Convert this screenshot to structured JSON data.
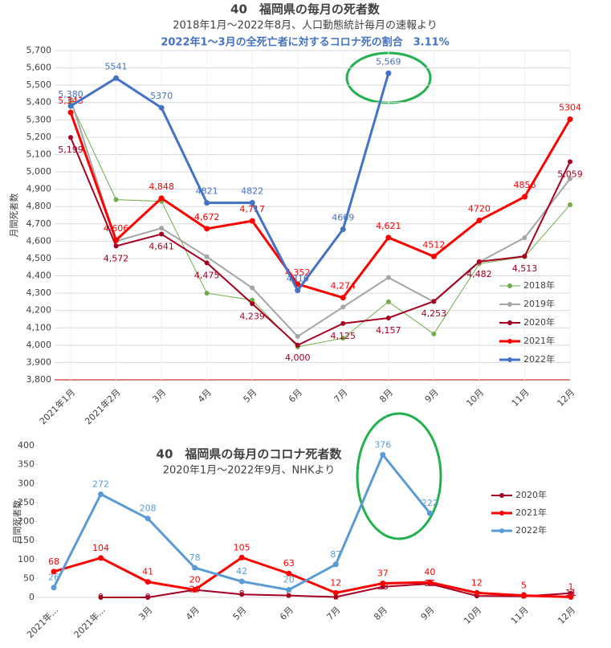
{
  "chart_data": [
    {
      "type": "line",
      "title": "40　福岡県の毎月の死者数",
      "subtitle": "2018年1月～2022年8月、人口動態統計毎月の速報より",
      "annotation": "2022年1～3月の全死亡者に対するコロナ死の割合　3.11%",
      "y_label": "月間死者数",
      "categories": [
        "2021年1月",
        "2021年2月",
        "3月",
        "4月",
        "5月",
        "6月",
        "7月",
        "8月",
        "9月",
        "10月",
        "11月",
        "12月"
      ],
      "ylim": [
        3800,
        5700
      ],
      "yticks": [
        {
          "value": 3800,
          "label": "3,800"
        },
        {
          "value": 3900,
          "label": "3,900"
        },
        {
          "value": 4000,
          "label": "4,000"
        },
        {
          "value": 4100,
          "label": "4,100"
        },
        {
          "value": 4200,
          "label": "4,200"
        },
        {
          "value": 4300,
          "label": "4,300"
        },
        {
          "value": 4400,
          "label": "4,400"
        },
        {
          "value": 4500,
          "label": "4,500"
        },
        {
          "value": 4600,
          "label": "4,600"
        },
        {
          "value": 4700,
          "label": "4,700"
        },
        {
          "value": 4800,
          "label": "4,800"
        },
        {
          "value": 4900,
          "label": "4,900"
        },
        {
          "value": 5000,
          "label": "5,000"
        },
        {
          "value": 5100,
          "label": "5,100"
        },
        {
          "value": 5200,
          "label": "5,200"
        },
        {
          "value": 5300,
          "label": "5,300"
        },
        {
          "value": 5400,
          "label": "5,400"
        },
        {
          "value": 5500,
          "label": "5,500"
        },
        {
          "value": 5600,
          "label": "5,600"
        },
        {
          "value": 5700,
          "label": "5,700"
        }
      ],
      "grid": true,
      "legend": "right",
      "series": [
        {
          "name": "2018年",
          "color": "#70ad47",
          "values": [
            5400,
            4840,
            4830,
            4300,
            4260,
            3990,
            4040,
            4250,
            4065,
            4470,
            4510,
            4810
          ]
        },
        {
          "name": "2019年",
          "color": "#a5a5a5",
          "values": [
            5420,
            4600,
            4675,
            4510,
            4330,
            4050,
            4220,
            4390,
            4250,
            4480,
            4620,
            4960
          ]
        },
        {
          "name": "2020年",
          "color": "#a50021",
          "values": [
            5199,
            4572,
            4641,
            4475,
            4239,
            4000,
            4125,
            4157,
            4253,
            4482,
            4513,
            5059
          ],
          "value_labels": [
            "5,199",
            "4,572",
            "4,641",
            "4,475",
            "4,239",
            "4,000",
            "4,125",
            "4,157",
            "4,253",
            "4,482",
            "4,513",
            "5,059"
          ]
        },
        {
          "name": "2021年",
          "color": "#ff0000",
          "values": [
            5343,
            4606,
            4848,
            4672,
            4717,
            4352,
            4274,
            4621,
            4512,
            4720,
            4856,
            5304
          ],
          "value_labels": [
            "5,343",
            "4,606",
            "4,848",
            "4,672",
            "4,717",
            "4,352",
            "4,274",
            "4,621",
            "4512",
            "4720",
            "4856",
            "5304"
          ]
        },
        {
          "name": "2022年",
          "color": "#4472c4",
          "values": [
            5380,
            5541,
            5370,
            4821,
            4822,
            4316,
            4669,
            5569,
            null,
            null,
            null,
            null
          ],
          "value_labels": [
            "5,380",
            "5541",
            "5370",
            "4821",
            "4822",
            "4316",
            "4669",
            "5,569",
            null,
            null,
            null,
            null
          ]
        }
      ]
    },
    {
      "type": "line",
      "title": "40　福岡県の毎月のコロナ死者数",
      "subtitle": "2020年1月～2022年9月、NHKより",
      "y_label": "月間死者数",
      "categories": [
        "2021年...",
        "2021年...",
        "3月",
        "4月",
        "5月",
        "6月",
        "7月",
        "8月",
        "9月",
        "10月",
        "11月",
        "12月"
      ],
      "ylim": [
        0,
        400
      ],
      "yticks": [
        0,
        50,
        100,
        150,
        200,
        250,
        300,
        350,
        400
      ],
      "grid": false,
      "legend": "right",
      "series": [
        {
          "name": "2020年",
          "color": "#a50021",
          "values": [
            null,
            0,
            0,
            20,
            8,
            5,
            1,
            28,
            36,
            4,
            3,
            11
          ],
          "value_labels": [
            null,
            "0",
            "0",
            "20",
            "8",
            "5",
            "1",
            "28",
            "36",
            "4",
            "3",
            "11"
          ]
        },
        {
          "name": "2021年",
          "color": "#ff0000",
          "values": [
            68,
            104,
            41,
            20,
            105,
            63,
            12,
            37,
            40,
            12,
            5,
            1
          ],
          "value_labels": [
            "68",
            "104",
            "41",
            "20",
            "105",
            "63",
            "12",
            "37",
            "40",
            "12",
            "5",
            "1"
          ]
        },
        {
          "name": "2022年",
          "color": "#5b9bd5",
          "values": [
            26,
            272,
            208,
            78,
            42,
            20,
            87,
            376,
            222,
            null,
            null,
            null
          ],
          "value_labels": [
            "26",
            "272",
            "208",
            "78",
            "42",
            "20",
            "87",
            "376",
            "222",
            null,
            null,
            null
          ]
        }
      ]
    }
  ]
}
